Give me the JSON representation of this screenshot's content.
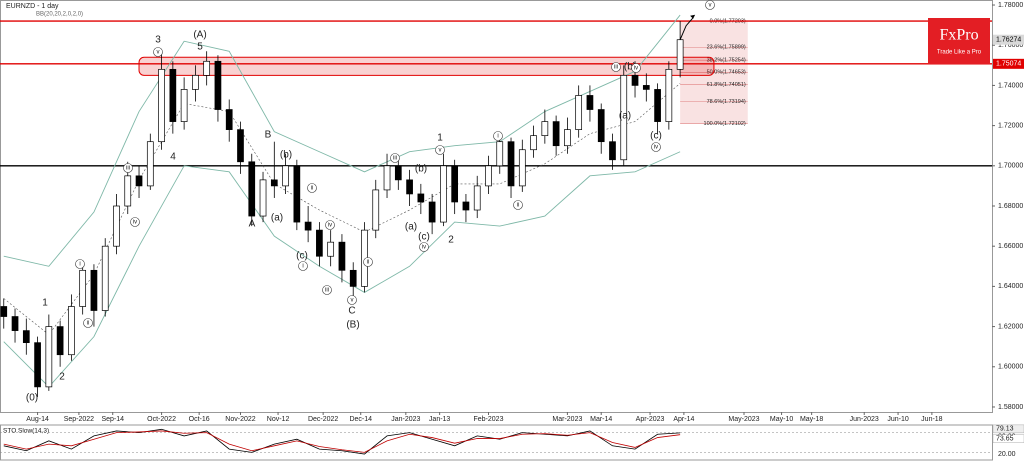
{
  "chart_data": {
    "type": "candlestick",
    "title": "EURNZD - 1 day",
    "subtitle": "BB(20,20,2,0,2,0)",
    "x": [
      0,
      3,
      6,
      9,
      12,
      15,
      18,
      21,
      24,
      27,
      30,
      33,
      36,
      39,
      42,
      45,
      48,
      51,
      54,
      57,
      60,
      63,
      66,
      69,
      72,
      75,
      78,
      81,
      84,
      87,
      90,
      93,
      96,
      99,
      102,
      105,
      108,
      111,
      114,
      117,
      120,
      123,
      126,
      129,
      132,
      135,
      138,
      141,
      144,
      147,
      150,
      153,
      156,
      159,
      162,
      165,
      168,
      171,
      174,
      177,
      180
    ],
    "open": [
      1.63,
      1.625,
      1.618,
      1.612,
      1.59,
      1.62,
      1.606,
      1.63,
      1.648,
      1.628,
      1.66,
      1.68,
      1.695,
      1.69,
      1.712,
      1.748,
      1.722,
      1.738,
      1.745,
      1.752,
      1.728,
      1.718,
      1.702,
      1.675,
      1.693,
      1.69,
      1.7,
      1.672,
      1.668,
      1.655,
      1.662,
      1.648,
      1.64,
      1.668,
      1.688,
      1.7,
      1.693,
      1.686,
      1.682,
      1.672,
      1.7,
      1.682,
      1.678,
      1.69,
      1.7,
      1.712,
      1.69,
      1.708,
      1.715,
      1.722,
      1.71,
      1.718,
      1.735,
      1.728,
      1.712,
      1.703,
      1.745,
      1.74,
      1.738,
      1.722,
      1.748
    ],
    "high": [
      1.634,
      1.629,
      1.624,
      1.615,
      1.626,
      1.623,
      1.636,
      1.652,
      1.651,
      1.664,
      1.686,
      1.702,
      1.7,
      1.716,
      1.756,
      1.752,
      1.744,
      1.75,
      1.757,
      1.755,
      1.733,
      1.722,
      1.706,
      1.697,
      1.712,
      1.706,
      1.703,
      1.68,
      1.672,
      1.668,
      1.666,
      1.652,
      1.672,
      1.693,
      1.706,
      1.704,
      1.698,
      1.691,
      1.686,
      1.706,
      1.703,
      1.686,
      1.695,
      1.705,
      1.717,
      1.714,
      1.713,
      1.72,
      1.728,
      1.725,
      1.724,
      1.74,
      1.74,
      1.731,
      1.716,
      1.75,
      1.752,
      1.746,
      1.741,
      1.752,
      1.772
    ],
    "low": [
      1.619,
      1.612,
      1.606,
      1.585,
      1.588,
      1.6,
      1.603,
      1.626,
      1.62,
      1.625,
      1.656,
      1.676,
      1.684,
      1.688,
      1.708,
      1.716,
      1.718,
      1.732,
      1.74,
      1.722,
      1.712,
      1.696,
      1.67,
      1.672,
      1.684,
      1.686,
      1.668,
      1.662,
      1.65,
      1.65,
      1.642,
      1.634,
      1.637,
      1.664,
      1.684,
      1.688,
      1.68,
      1.676,
      1.666,
      1.67,
      1.676,
      1.672,
      1.674,
      1.686,
      1.696,
      1.684,
      1.687,
      1.704,
      1.711,
      1.705,
      1.706,
      1.714,
      1.722,
      1.706,
      1.698,
      1.7,
      1.734,
      1.732,
      1.716,
      1.718,
      1.744
    ],
    "close": [
      1.625,
      1.618,
      1.612,
      1.59,
      1.62,
      1.606,
      1.63,
      1.648,
      1.628,
      1.66,
      1.68,
      1.695,
      1.69,
      1.712,
      1.748,
      1.722,
      1.738,
      1.745,
      1.752,
      1.728,
      1.718,
      1.702,
      1.675,
      1.693,
      1.69,
      1.7,
      1.672,
      1.668,
      1.655,
      1.662,
      1.648,
      1.64,
      1.668,
      1.688,
      1.7,
      1.693,
      1.686,
      1.682,
      1.672,
      1.7,
      1.682,
      1.678,
      1.69,
      1.7,
      1.712,
      1.69,
      1.708,
      1.715,
      1.722,
      1.71,
      1.718,
      1.735,
      1.728,
      1.712,
      1.703,
      1.745,
      1.74,
      1.738,
      1.722,
      1.748,
      1.76274
    ],
    "xlim": [
      -1,
      263
    ],
    "xticks": [
      {
        "value": 9,
        "label": "Aug-14"
      },
      {
        "value": 20,
        "label": "Sep-2022"
      },
      {
        "value": 29,
        "label": "Sep-14"
      },
      {
        "value": 42,
        "label": "Oct-2022"
      },
      {
        "value": 52,
        "label": "Oct-16"
      },
      {
        "value": 63,
        "label": "Nov-2022"
      },
      {
        "value": 73,
        "label": "Nov-12"
      },
      {
        "value": 85,
        "label": "Dec-2022"
      },
      {
        "value": 95,
        "label": "Dec-14"
      },
      {
        "value": 107,
        "label": "Jan-2023"
      },
      {
        "value": 116,
        "label": "Jan-13"
      },
      {
        "value": 129,
        "label": "Feb-2023"
      },
      {
        "value": 150,
        "label": "Mar-2023"
      },
      {
        "value": 159,
        "label": "Mar-14"
      },
      {
        "value": 172,
        "label": "Apr-2023"
      },
      {
        "value": 181,
        "label": "Apr-14"
      },
      {
        "value": 197,
        "label": "May-2023"
      },
      {
        "value": 207,
        "label": "May-10"
      },
      {
        "value": 215,
        "label": "May-18"
      },
      {
        "value": 229,
        "label": "Jun-2023"
      },
      {
        "value": 238,
        "label": "Jun-10"
      },
      {
        "value": 247,
        "label": "Jun-18"
      }
    ],
    "ylim": [
      1.5775,
      1.7825
    ],
    "yticks": [
      {
        "value": 1.78,
        "label": "1.78000"
      },
      {
        "value": 1.76,
        "label": "1.76000"
      },
      {
        "value": 1.74,
        "label": "1.74000"
      },
      {
        "value": 1.72,
        "label": "1.72000"
      },
      {
        "value": 1.7,
        "label": "1.70000"
      },
      {
        "value": 1.68,
        "label": "1.68000"
      },
      {
        "value": 1.66,
        "label": "1.66000"
      },
      {
        "value": 1.64,
        "label": "1.64000"
      },
      {
        "value": 1.62,
        "label": "1.62000"
      },
      {
        "value": 1.6,
        "label": "1.60000"
      },
      {
        "value": 1.58,
        "label": "1.58000"
      }
    ],
    "bull_color": "#ffffff",
    "bear_color": "#000000",
    "bands": {
      "color": "#7fb8a8",
      "x": [
        0,
        12,
        24,
        36,
        48,
        60,
        72,
        84,
        96,
        108,
        120,
        132,
        144,
        156,
        168,
        180
      ],
      "upper": [
        1.655,
        1.65,
        1.677,
        1.727,
        1.762,
        1.757,
        1.717,
        1.707,
        1.697,
        1.707,
        1.71,
        1.712,
        1.727,
        1.737,
        1.747,
        1.775
      ],
      "middle": [
        1.634,
        1.616,
        1.646,
        1.693,
        1.731,
        1.727,
        1.691,
        1.678,
        1.667,
        1.678,
        1.691,
        1.691,
        1.701,
        1.716,
        1.722,
        1.741
      ],
      "lower": [
        1.6125,
        1.59,
        1.615,
        1.66,
        1.7,
        1.697,
        1.665,
        1.65,
        1.637,
        1.65,
        1.672,
        1.67,
        1.675,
        1.695,
        1.697,
        1.707
      ]
    },
    "hlines": [
      {
        "value": 1.77203,
        "color": "#e00000"
      },
      {
        "value": 1.75074,
        "color": "#e00000"
      },
      {
        "value": 1.7,
        "color": "#000000"
      }
    ],
    "zone": {
      "xlim": [
        36,
        189
      ],
      "ylim": [
        1.745,
        1.754
      ],
      "color": "#e00000"
    },
    "fib": {
      "xlim": [
        180,
        198
      ],
      "color": "#f4c6c6",
      "levels": [
        {
          "value": 1.77203,
          "label": "0.0%(1.77203)"
        },
        {
          "value": 1.75899,
          "label": "23.6%(1.75899)"
        },
        {
          "value": 1.75254,
          "label": "38.2%(1.75254)"
        },
        {
          "value": 1.74653,
          "label": "50.0%(1.74653)"
        },
        {
          "value": 1.74051,
          "label": "61.8%(1.74051)"
        },
        {
          "value": 1.73194,
          "label": "78.6%(1.73194)"
        },
        {
          "value": 1.72102,
          "label": "100.0%(1.72102)"
        }
      ]
    },
    "price_tags": [
      {
        "value": 1.76274,
        "color": "#d9d9d9"
      },
      {
        "value": 1.75074,
        "color": "#e00000"
      }
    ],
    "annotations": [
      "(0)",
      "1",
      "2",
      "i",
      "ii",
      "iii",
      "iv",
      "3",
      "v",
      "4",
      "(A)",
      "5",
      "B",
      "(b)",
      "A",
      "(a)",
      "ii",
      "iv",
      "(c)",
      "i",
      "iii",
      "v",
      "C",
      "(B)",
      "ii",
      "iii",
      "(b)",
      "(a)",
      "(c)",
      "iv",
      "1",
      "v",
      "2",
      "i",
      "ii",
      "iii",
      "(b)",
      "iv",
      "(a)",
      "(c)",
      "iv",
      "v"
    ],
    "stochastic": {
      "title": "STO Slow(14,3)",
      "ylim": [
        0,
        100
      ],
      "yticks": [
        {
          "value": 80,
          "label": "80.00"
        },
        {
          "value": 20,
          "label": "20.00"
        }
      ],
      "x": [
        0,
        6,
        12,
        18,
        24,
        30,
        36,
        42,
        48,
        54,
        60,
        66,
        72,
        78,
        84,
        90,
        96,
        102,
        108,
        114,
        120,
        126,
        132,
        138,
        144,
        150,
        156,
        162,
        168,
        174,
        180
      ],
      "series": [
        {
          "color": "#000000",
          "values": [
            40,
            25,
            55,
            30,
            70,
            85,
            80,
            90,
            70,
            85,
            30,
            20,
            45,
            60,
            30,
            25,
            15,
            70,
            80,
            60,
            40,
            70,
            60,
            80,
            75,
            70,
            85,
            40,
            30,
            75,
            79.13
          ],
          "value_labels_last": "79.13"
        },
        {
          "color": "#c00000",
          "values": [
            45,
            30,
            45,
            40,
            60,
            80,
            82,
            85,
            78,
            80,
            45,
            25,
            40,
            55,
            38,
            28,
            20,
            55,
            75,
            65,
            48,
            62,
            62,
            75,
            77,
            72,
            80,
            50,
            35,
            65,
            73.65
          ],
          "value_labels_last": "73.65"
        }
      ]
    }
  },
  "logo": {
    "name": "FxPro",
    "tagline": "Trade Like a Pro"
  }
}
